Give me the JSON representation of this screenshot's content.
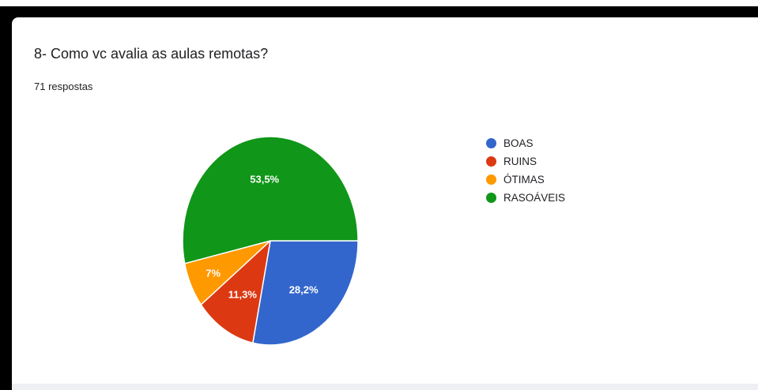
{
  "form": {
    "question": "8- Como vc avalia as aulas remotas?",
    "responses": "71 respostas"
  },
  "chart_data": {
    "type": "pie",
    "categories": [
      "BOAS",
      "RUINS",
      "ÓTIMAS",
      "RASOÁVEIS"
    ],
    "values": [
      28.2,
      11.3,
      7.0,
      53.5
    ],
    "labels": [
      "28,2%",
      "11,3%",
      "7%",
      "53,5%"
    ],
    "colors": [
      "#3366cc",
      "#dc3912",
      "#ff9900",
      "#109618"
    ],
    "legend_position": "right"
  }
}
